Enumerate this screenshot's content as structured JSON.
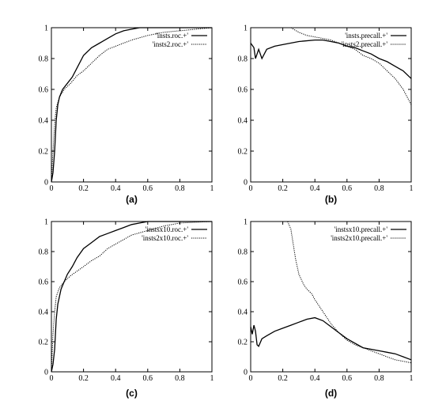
{
  "chart_data": [
    {
      "type": "line",
      "caption": "(a)",
      "xlim": [
        0,
        1
      ],
      "ylim": [
        0,
        1
      ],
      "xticks": [
        "0",
        "0.2",
        "0.4",
        "0.6",
        "0.8",
        "1"
      ],
      "yticks": [
        "0",
        "0.2",
        "0.4",
        "0.6",
        "0.8",
        "1"
      ],
      "legend_position": "top-right",
      "series": [
        {
          "name": "'insts.roc.+'",
          "style": "solid",
          "x": [
            0,
            0.01,
            0.02,
            0.03,
            0.04,
            0.05,
            0.07,
            0.1,
            0.13,
            0.16,
            0.2,
            0.25,
            0.3,
            0.35,
            0.4,
            0.45,
            0.5,
            0.55,
            0.6,
            0.7,
            0.8,
            0.9,
            1.0
          ],
          "y": [
            0,
            0.06,
            0.2,
            0.4,
            0.5,
            0.55,
            0.6,
            0.64,
            0.68,
            0.74,
            0.82,
            0.87,
            0.9,
            0.93,
            0.96,
            0.98,
            0.99,
            1.0,
            1.0,
            1.0,
            1.0,
            1.0,
            1.0
          ]
        },
        {
          "name": "'insts2.roc.+'",
          "style": "dotted",
          "x": [
            0,
            0.01,
            0.02,
            0.03,
            0.05,
            0.08,
            0.12,
            0.16,
            0.2,
            0.25,
            0.3,
            0.35,
            0.4,
            0.5,
            0.6,
            0.7,
            0.8,
            0.9,
            1.0
          ],
          "y": [
            0,
            0.2,
            0.38,
            0.48,
            0.55,
            0.6,
            0.64,
            0.69,
            0.72,
            0.77,
            0.82,
            0.86,
            0.88,
            0.92,
            0.95,
            0.97,
            0.98,
            0.99,
            1.0
          ]
        }
      ]
    },
    {
      "type": "line",
      "caption": "(b)",
      "xlim": [
        0,
        1
      ],
      "ylim": [
        0,
        1
      ],
      "xticks": [
        "0",
        "0.2",
        "0.4",
        "0.6",
        "0.8",
        "1"
      ],
      "yticks": [
        "0",
        "0.2",
        "0.4",
        "0.6",
        "0.8",
        "1"
      ],
      "legend_position": "top-right",
      "series": [
        {
          "name": "'insts.precall.+'",
          "style": "solid",
          "x": [
            0.0,
            0.02,
            0.03,
            0.05,
            0.07,
            0.1,
            0.15,
            0.2,
            0.3,
            0.4,
            0.45,
            0.5,
            0.55,
            0.6,
            0.65,
            0.7,
            0.75,
            0.8,
            0.85,
            0.9,
            0.95,
            1.0
          ],
          "y": [
            0.9,
            0.87,
            0.8,
            0.86,
            0.8,
            0.86,
            0.88,
            0.89,
            0.91,
            0.92,
            0.92,
            0.91,
            0.9,
            0.88,
            0.87,
            0.85,
            0.83,
            0.8,
            0.78,
            0.75,
            0.72,
            0.67
          ]
        },
        {
          "name": "'insts2.precall.+'",
          "style": "dotted",
          "x": [
            0.25,
            0.3,
            0.35,
            0.4,
            0.45,
            0.5,
            0.55,
            0.6,
            0.65,
            0.7,
            0.75,
            0.8,
            0.85,
            0.9,
            0.95,
            1.0
          ],
          "y": [
            1.0,
            0.97,
            0.95,
            0.94,
            0.93,
            0.92,
            0.9,
            0.88,
            0.86,
            0.82,
            0.8,
            0.77,
            0.72,
            0.67,
            0.6,
            0.5
          ]
        }
      ]
    },
    {
      "type": "line",
      "caption": "(c)",
      "xlim": [
        0,
        1
      ],
      "ylim": [
        0,
        1
      ],
      "xticks": [
        "0",
        "0.2",
        "0.4",
        "0.6",
        "0.8",
        "1"
      ],
      "yticks": [
        "0",
        "0.2",
        "0.4",
        "0.6",
        "0.8",
        "1"
      ],
      "legend_position": "top-right",
      "series": [
        {
          "name": "'instsx10.roc.+'",
          "style": "solid",
          "x": [
            0,
            0.01,
            0.02,
            0.03,
            0.04,
            0.06,
            0.08,
            0.1,
            0.13,
            0.16,
            0.2,
            0.25,
            0.3,
            0.35,
            0.4,
            0.45,
            0.5,
            0.55,
            0.6,
            0.7,
            0.8,
            0.9,
            1.0
          ],
          "y": [
            0,
            0.05,
            0.15,
            0.35,
            0.45,
            0.55,
            0.6,
            0.65,
            0.7,
            0.76,
            0.82,
            0.86,
            0.9,
            0.92,
            0.94,
            0.96,
            0.98,
            0.99,
            1.0,
            1.0,
            1.0,
            1.0,
            1.0
          ]
        },
        {
          "name": "'insts2x10.roc.+'",
          "style": "dotted",
          "x": [
            0,
            0.01,
            0.02,
            0.03,
            0.05,
            0.08,
            0.12,
            0.16,
            0.2,
            0.25,
            0.3,
            0.35,
            0.4,
            0.45,
            0.5,
            0.6,
            0.7,
            0.8,
            0.9,
            1.0
          ],
          "y": [
            0,
            0.25,
            0.4,
            0.5,
            0.56,
            0.6,
            0.64,
            0.67,
            0.7,
            0.74,
            0.77,
            0.82,
            0.85,
            0.88,
            0.91,
            0.94,
            0.97,
            0.99,
            0.995,
            1.0
          ]
        }
      ]
    },
    {
      "type": "line",
      "caption": "(d)",
      "xlim": [
        0,
        1
      ],
      "ylim": [
        0,
        1
      ],
      "xticks": [
        "0",
        "0.2",
        "0.4",
        "0.6",
        "0.8",
        "1"
      ],
      "yticks": [
        "0",
        "0.2",
        "0.4",
        "0.6",
        "0.8",
        "1"
      ],
      "legend_position": "top-right",
      "series": [
        {
          "name": "'instsx10.precall.+'",
          "style": "solid",
          "x": [
            0.0,
            0.01,
            0.02,
            0.03,
            0.04,
            0.05,
            0.07,
            0.1,
            0.15,
            0.2,
            0.25,
            0.3,
            0.35,
            0.4,
            0.45,
            0.5,
            0.55,
            0.6,
            0.65,
            0.7,
            0.75,
            0.8,
            0.85,
            0.9,
            0.95,
            1.0
          ],
          "y": [
            0.3,
            0.25,
            0.31,
            0.27,
            0.18,
            0.17,
            0.22,
            0.24,
            0.27,
            0.29,
            0.31,
            0.33,
            0.35,
            0.36,
            0.34,
            0.3,
            0.26,
            0.22,
            0.19,
            0.16,
            0.15,
            0.14,
            0.13,
            0.12,
            0.1,
            0.08
          ]
        },
        {
          "name": "'insts2x10.precall.+'",
          "style": "dotted",
          "x": [
            0.23,
            0.25,
            0.28,
            0.3,
            0.33,
            0.35,
            0.38,
            0.4,
            0.45,
            0.5,
            0.55,
            0.6,
            0.65,
            0.7,
            0.75,
            0.8,
            0.85,
            0.9,
            0.95,
            1.0
          ],
          "y": [
            1.0,
            0.95,
            0.75,
            0.65,
            0.58,
            0.55,
            0.52,
            0.48,
            0.4,
            0.32,
            0.26,
            0.21,
            0.18,
            0.16,
            0.14,
            0.12,
            0.1,
            0.08,
            0.07,
            0.06
          ]
        }
      ]
    }
  ]
}
